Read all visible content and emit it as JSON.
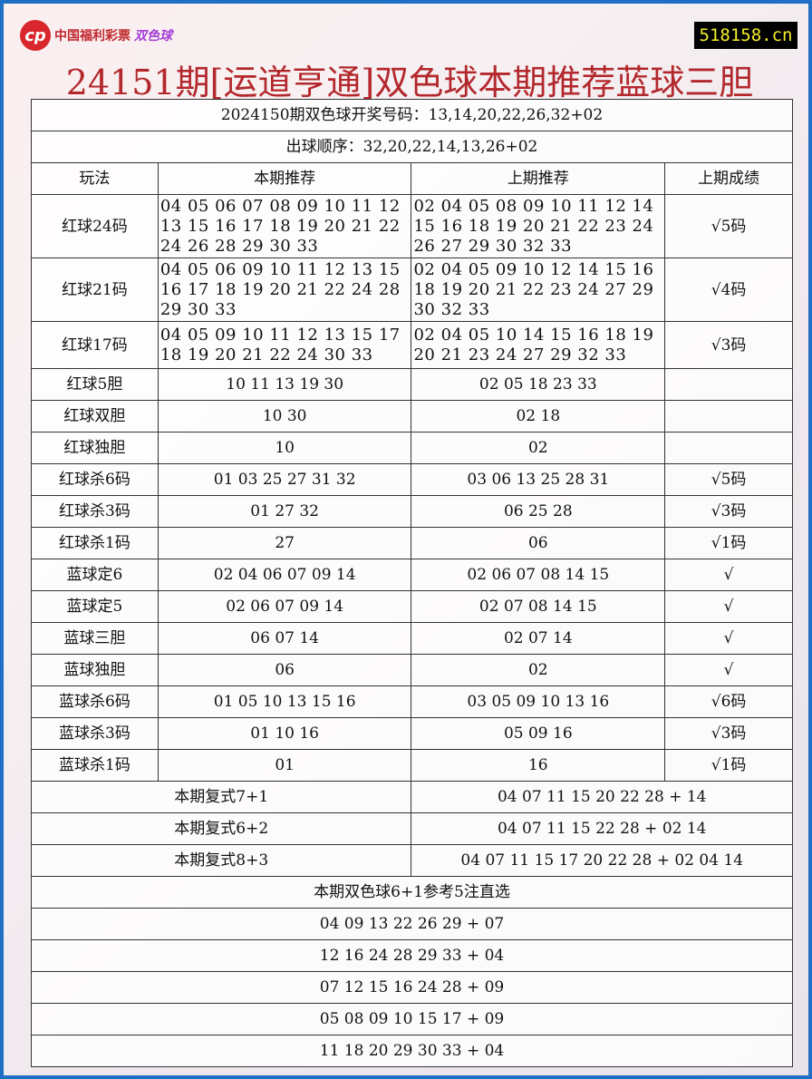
{
  "header": {
    "logo_text": "中国福利彩票",
    "logo_text2": "双色球",
    "site": "518158.cn",
    "title": "24151期[运道亨通]双色球本期推荐蓝球三胆"
  },
  "draw": {
    "result": "2024150期双色球开奖号码：13,14,20,22,26,32+02",
    "order": "出球顺序：32,20,22,14,13,26+02"
  },
  "columns": [
    "玩法",
    "本期推荐",
    "上期推荐",
    "上期成绩"
  ],
  "rows": [
    {
      "name": "红球24码",
      "cur": "04 05 06 07 08 09 10 11 12 13 15 16 17 18 19 20 21 22 24 26 28 29 30 33",
      "prev": "02 04 05 08 09 10 11 12 14 15 16 18 19 20 21 22 23 24 26 27 29 30 32 33",
      "result": "√5码"
    },
    {
      "name": "红球21码",
      "cur": "04 05 06 09 10 11 12 13 15 16 17 18 19 20 21 22 24 28 29 30 33",
      "prev": "02 04 05 09 10 12 14 15 16 18 19 20 21 22 23 24 27 29 30 32 33",
      "result": "√4码"
    },
    {
      "name": "红球17码",
      "cur": "04 05 09 10 11 12 13 15 17 18 19 20 21 22 24 30 33",
      "prev": "02 04 05 10 14 15 16 18 19 20 21 23 24 27 29 32 33",
      "result": "√3码"
    },
    {
      "name": "红球5胆",
      "cur": "10 11 13 19 30",
      "prev": "02 05 18 23 33",
      "result": ""
    },
    {
      "name": "红球双胆",
      "cur": "10 30",
      "prev": "02 18",
      "result": ""
    },
    {
      "name": "红球独胆",
      "cur": "10",
      "prev": "02",
      "result": ""
    },
    {
      "name": "红球杀6码",
      "cur": "01 03 25 27 31 32",
      "prev": "03 06 13 25 28 31",
      "result": "√5码"
    },
    {
      "name": "红球杀3码",
      "cur": "01 27 32",
      "prev": "06 25 28",
      "result": "√3码"
    },
    {
      "name": "红球杀1码",
      "cur": "27",
      "prev": "06",
      "result": "√1码"
    },
    {
      "name": "蓝球定6",
      "cur": "02 04 06 07 09 14",
      "prev": "02 06 07 08 14 15",
      "result": "√"
    },
    {
      "name": "蓝球定5",
      "cur": "02 06 07 09 14",
      "prev": "02 07 08 14 15",
      "result": "√"
    },
    {
      "name": "蓝球三胆",
      "cur": "06 07 14",
      "prev": "02 07 14",
      "result": "√"
    },
    {
      "name": "蓝球独胆",
      "cur": "06",
      "prev": "02",
      "result": "√"
    },
    {
      "name": "蓝球杀6码",
      "cur": "01 05 10 13 15 16",
      "prev": "03 05 09 10 13 16",
      "result": "√6码"
    },
    {
      "name": "蓝球杀3码",
      "cur": "01 10 16",
      "prev": "05 09 16",
      "result": "√3码"
    },
    {
      "name": "蓝球杀1码",
      "cur": "01",
      "prev": "16",
      "result": "√1码"
    }
  ],
  "fushi": [
    {
      "label": "本期复式7+1",
      "nums": "04 07 11 15 20 22 28 + 14"
    },
    {
      "label": "本期复式6+2",
      "nums": "04 07 11 15 22 28 + 02 14"
    },
    {
      "label": "本期复式8+3",
      "nums": "04 07 11 15 17 20 22 28 + 02 04 14"
    }
  ],
  "picks_title": "本期双色球6+1参考5注直选",
  "picks": [
    "04 09 13 22 26 29 + 07",
    "12 16 24 28 29 33 + 04",
    "07 12 15 16 24 28 + 09",
    "05 08 09 10 15 17 + 09",
    "11 18 20 29 30 33 + 04"
  ]
}
